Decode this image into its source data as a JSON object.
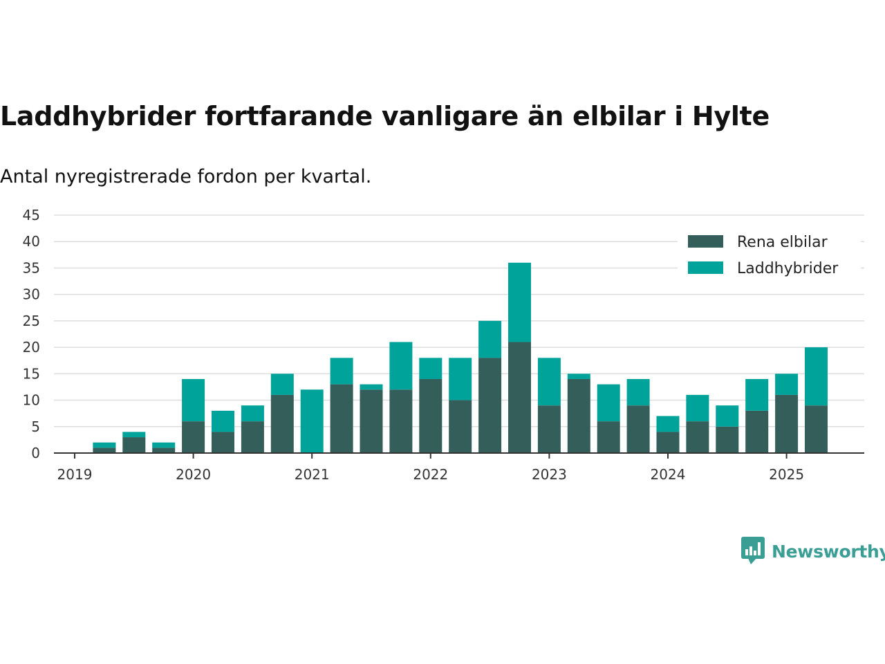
{
  "chart_data": {
    "type": "bar",
    "stacked": true,
    "title": "Laddhybrider fortfarande vanligare än elbilar i Hylte",
    "subtitle": "Antal nyregistrerade fordon per kvartal.",
    "x": [
      "2019Q1",
      "2019Q2",
      "2019Q3",
      "2019Q4",
      "2020Q1",
      "2020Q2",
      "2020Q3",
      "2020Q4",
      "2021Q1",
      "2021Q2",
      "2021Q3",
      "2021Q4",
      "2022Q1",
      "2022Q2",
      "2022Q3",
      "2022Q4",
      "2023Q1",
      "2023Q2",
      "2023Q3",
      "2023Q4",
      "2024Q1",
      "2024Q2",
      "2024Q3",
      "2024Q4",
      "2025Q1",
      "2025Q2"
    ],
    "x_tick_labels": [
      "2019",
      "2020",
      "2021",
      "2022",
      "2023",
      "2024",
      "2025"
    ],
    "y_ticks": [
      0,
      5,
      10,
      15,
      20,
      25,
      30,
      35,
      40,
      45
    ],
    "ylim": [
      0,
      45
    ],
    "grid": true,
    "legend_position": "top-right",
    "series": [
      {
        "name": "Rena elbilar",
        "color": "#335e59",
        "values": [
          0,
          1,
          3,
          1,
          6,
          4,
          6,
          11,
          0,
          13,
          12,
          12,
          14,
          10,
          18,
          21,
          9,
          14,
          6,
          9,
          4,
          6,
          5,
          8,
          11,
          9
        ]
      },
      {
        "name": "Laddhybrider",
        "color": "#00a39a",
        "values": [
          0,
          1,
          1,
          1,
          8,
          4,
          3,
          4,
          12,
          5,
          1,
          9,
          4,
          8,
          7,
          15,
          9,
          1,
          7,
          5,
          3,
          5,
          4,
          6,
          4,
          11
        ]
      }
    ]
  },
  "brand": {
    "name": "Newsworthy",
    "icon": "newsworthy-logo-icon",
    "color": "#3a9e95"
  }
}
